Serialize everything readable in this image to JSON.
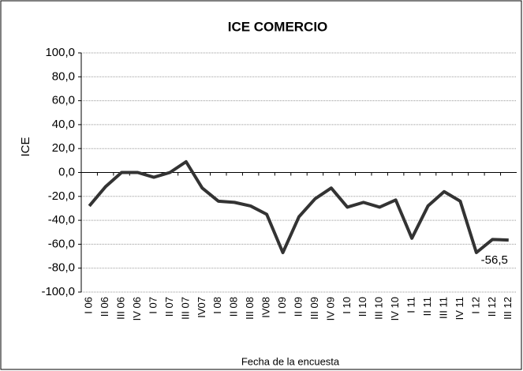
{
  "chart_data": {
    "type": "line",
    "title": "ICE COMERCIO",
    "ylabel": "ICE",
    "xlabel": "Fecha de la encuesta",
    "categories": [
      "I 06",
      "II 06",
      "III 06",
      "IV 06",
      "I 07",
      "II 07",
      "III 07",
      "IV07",
      "I 08",
      "II 08",
      "III 08",
      "IV08",
      "I 09",
      "II 09",
      "III 09",
      "IV 09",
      "I 10",
      "II 10",
      "III 10",
      "IV 10",
      "I 11",
      "II 11",
      "III 11",
      "IV 11",
      "I 12",
      "II 12",
      "III 12"
    ],
    "series": [
      {
        "name": "ICE",
        "color": "#333333",
        "values": [
          -28,
          -12,
          0,
          0,
          -4,
          0,
          9,
          -13,
          -24,
          -25,
          -28,
          -35,
          -67,
          -37,
          -22,
          -13,
          -29,
          -25,
          -29,
          -23,
          -55,
          -28,
          -16,
          -24,
          -67,
          -56,
          -56.5
        ],
        "value_labels": [
          null,
          null,
          null,
          null,
          null,
          null,
          null,
          null,
          null,
          null,
          null,
          null,
          null,
          null,
          null,
          null,
          null,
          null,
          null,
          null,
          null,
          null,
          null,
          null,
          null,
          null,
          "-56,5"
        ]
      }
    ],
    "ylim": [
      -100,
      100
    ],
    "yticks": [
      {
        "value": 100,
        "label": "100,0"
      },
      {
        "value": 80,
        "label": "80,0"
      },
      {
        "value": 60,
        "label": "60,0"
      },
      {
        "value": 40,
        "label": "40,0"
      },
      {
        "value": 20,
        "label": "20,0"
      },
      {
        "value": 0,
        "label": "0,0"
      },
      {
        "value": -20,
        "label": "-20,0"
      },
      {
        "value": -40,
        "label": "-40,0"
      },
      {
        "value": -60,
        "label": "-60,0"
      },
      {
        "value": -80,
        "label": "-80,0"
      },
      {
        "value": -100,
        "label": "-100,0"
      }
    ],
    "grid": true
  }
}
